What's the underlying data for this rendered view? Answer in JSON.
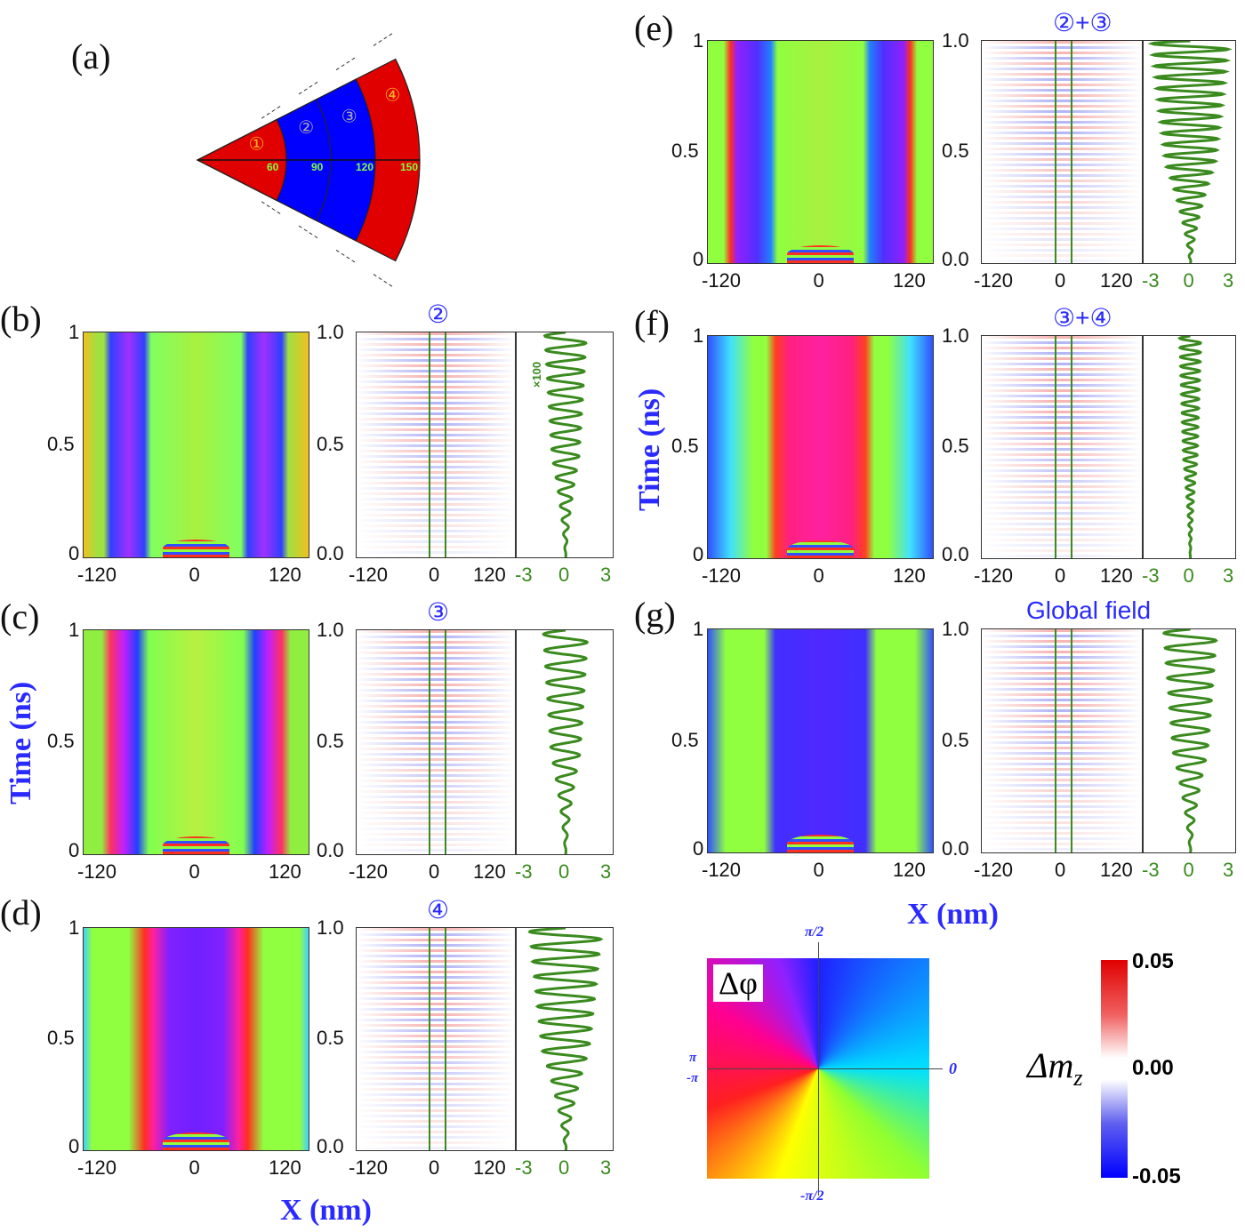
{
  "chart_data": {
    "type": "heatmap",
    "panel_a": {
      "label": "(a)",
      "regions": [
        "①",
        "②",
        "③",
        "④"
      ],
      "radii_labels": [
        "60",
        "90",
        "120",
        "150"
      ],
      "colors": [
        "#e00000",
        "#0000ff",
        "#0000ff",
        "#e00000"
      ]
    },
    "panels": [
      {
        "label": "(b)",
        "title": "②",
        "wave_note": "×100",
        "wave_amp": 1.5,
        "cycles": 16,
        "style": "b"
      },
      {
        "label": "(c)",
        "title": "③",
        "wave_note": "",
        "wave_amp": 1.6,
        "cycles": 14,
        "style": "c"
      },
      {
        "label": "(d)",
        "title": "④",
        "wave_note": "",
        "wave_amp": 2.6,
        "cycles": 15,
        "style": "d"
      },
      {
        "label": "(e)",
        "title": "②+③",
        "wave_note": "",
        "wave_amp": 2.9,
        "cycles": 20,
        "style": "e"
      },
      {
        "label": "(f)",
        "title": "③+④",
        "wave_note": "",
        "wave_amp": 0.8,
        "cycles": 24,
        "style": "f"
      },
      {
        "label": "(g)",
        "title": "Global field",
        "wave_note": "",
        "wave_amp": 2.0,
        "cycles": 15,
        "style": "g"
      }
    ],
    "heatmap_x_ticks": [
      "-120",
      "0",
      "120"
    ],
    "heatmap_y_ticks": [
      "0",
      "0.5",
      "1"
    ],
    "field_x_ticks": [
      "-120",
      "0",
      "120"
    ],
    "field_y_ticks": [
      "0.0",
      "0.5",
      "1.0"
    ],
    "wave_x_ticks": [
      "-3",
      "0",
      "3"
    ],
    "xlim": [
      -150,
      150
    ],
    "ylim": [
      0,
      1
    ],
    "ylabel": "Time (ns)",
    "xlabel": "X (nm)",
    "phase_legend": {
      "symbol": "Δφ",
      "top": "π/2",
      "bottom": "-π/2",
      "right": "0",
      "left_top": "π",
      "left_bottom": "-π"
    },
    "colorbar": {
      "symbol": "Δm",
      "subscript": "z",
      "max": "0.05",
      "mid": "0.00",
      "min": "-0.05",
      "colors": [
        "#e00000",
        "#ffffff",
        "#0000ff"
      ]
    }
  }
}
